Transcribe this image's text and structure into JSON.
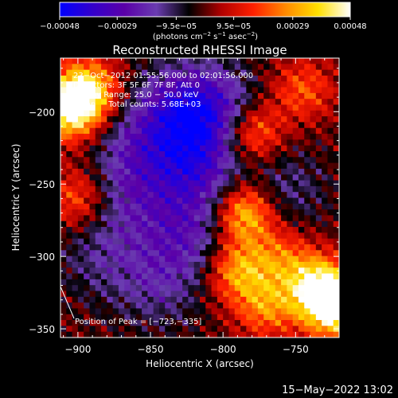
{
  "chart_data": {
    "type": "heatmap",
    "title": "Reconstructed RHESSI Image",
    "xlabel": "Heliocentric X (arcsec)",
    "ylabel": "Heliocentric Y (arcsec)",
    "xlim": [
      -912,
      -720
    ],
    "ylim": [
      -356,
      -163
    ],
    "x_ticks": [
      -900,
      -850,
      -800,
      -750
    ],
    "x_tick_labels": [
      "−900",
      "−850",
      "−800",
      "−750"
    ],
    "y_ticks": [
      -350,
      -300,
      -250,
      -200
    ],
    "y_tick_labels": [
      "−350",
      "−300",
      "−250",
      "−200"
    ],
    "colorbar": {
      "range": [
        -0.00048,
        0.00048
      ],
      "ticks": [
        -0.00048,
        -0.00029,
        -9.5e-05,
        9.5e-05,
        0.00029,
        0.00048
      ],
      "tick_labels": [
        "−0.00048",
        "−0.00029",
        "−9.5e−05",
        "9.5e−05",
        "0.00029",
        "0.00048"
      ],
      "units_text": "(photons cm",
      "units_sup1": "−2",
      "units_mid": " s",
      "units_sup2": "−1",
      "units_mid2": " asec",
      "units_sup3": "−2",
      "units_end": ")",
      "colors": [
        "#0000ff",
        "#3300cc",
        "#5a00a8",
        "#6a3cb0",
        "#000000",
        "#b00000",
        "#ff2000",
        "#ff8a00",
        "#ffe000",
        "#ffffff"
      ]
    },
    "annotations": {
      "time_range": "23−Oct−2012 01:55:56.000 to 02:01:56.000",
      "detectors": "Detectors: 3F 5F 6F 7F 8F, Att 0",
      "energy_range": "Energy Range: 25.0 − 50.0 keV",
      "algorithm": "Clean     Total counts: 5.68E+03",
      "peak_label": "Position of Peak = [−723,−335]"
    },
    "peak": {
      "x": -723,
      "y": -335
    },
    "bright_regions": [
      {
        "x": -906,
        "y": -198,
        "value": 0.00046
      },
      {
        "x": -893,
        "y": -185,
        "value": 0.00035
      },
      {
        "x": -900,
        "y": -260,
        "value": 0.00022
      },
      {
        "x": -780,
        "y": -215,
        "value": 0.0003
      },
      {
        "x": -785,
        "y": -270,
        "value": 0.0004
      },
      {
        "x": -790,
        "y": -310,
        "value": 0.0003
      },
      {
        "x": -770,
        "y": -335,
        "value": 0.00025
      },
      {
        "x": -760,
        "y": -300,
        "value": 0.0002
      },
      {
        "x": -735,
        "y": -320,
        "value": 0.00038
      },
      {
        "x": -723,
        "y": -335,
        "value": 0.00048
      },
      {
        "x": -745,
        "y": -185,
        "value": 0.0002
      }
    ],
    "dark_regions": [
      {
        "x": -830,
        "y": -200,
        "value": -0.00028
      },
      {
        "x": -820,
        "y": -240,
        "value": -0.00026
      },
      {
        "x": -805,
        "y": -200,
        "value": -0.00024
      },
      {
        "x": -825,
        "y": -285,
        "value": -0.0002
      },
      {
        "x": -860,
        "y": -225,
        "value": -0.00016
      },
      {
        "x": -845,
        "y": -320,
        "value": -0.00014
      },
      {
        "x": -885,
        "y": -300,
        "value": -0.00012
      },
      {
        "x": -865,
        "y": -260,
        "value": -0.00014
      },
      {
        "x": -760,
        "y": -255,
        "value": -0.00014
      }
    ]
  },
  "footer": {
    "timestamp": "15−May−2022 13:02"
  }
}
